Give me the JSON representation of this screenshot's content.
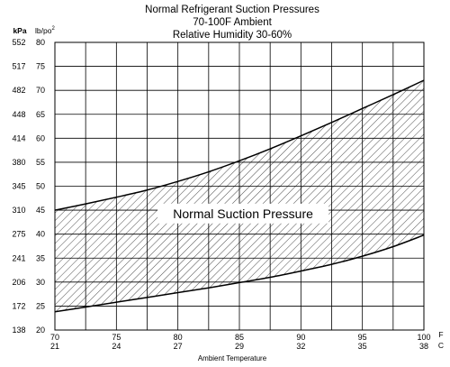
{
  "chart_data": {
    "type": "area",
    "title_lines": [
      "Normal  Refrigerant  Suction  Pressures",
      "70-100F Ambient",
      "Relative Humidity 30-60%"
    ],
    "y_unit_kpa": "kPa",
    "y_unit_lb": "lb/po",
    "y_unit_lb_sup": "2",
    "x_unit_f": "F",
    "x_unit_c": "C",
    "xlabel": "Ambient Temperature",
    "band_label": "Normal Suction Pressure",
    "xlim": [
      70,
      100
    ],
    "ylim": [
      20,
      80
    ],
    "x_ticks_f": [
      "70",
      "75",
      "80",
      "85",
      "90",
      "95",
      "100"
    ],
    "x_ticks_c": [
      "21",
      "24",
      "27",
      "29",
      "32",
      "35",
      "38"
    ],
    "y_ticks_lb": [
      "20",
      "25",
      "30",
      "35",
      "40",
      "45",
      "50",
      "55",
      "60",
      "65",
      "70",
      "75",
      "80"
    ],
    "y_ticks_kpa": [
      "138",
      "172",
      "206",
      "241",
      "275",
      "310",
      "345",
      "380",
      "414",
      "448",
      "482",
      "517",
      "552"
    ],
    "grid": true,
    "series": [
      {
        "x": [
          70,
          72.5,
          75,
          77.5,
          80,
          82.5,
          85,
          87.5,
          90,
          92.5,
          95,
          97.5,
          100
        ],
        "values": [
          45,
          46.3,
          47.7,
          49.2,
          51,
          53,
          55.3,
          57.8,
          60.5,
          63.3,
          66.2,
          69.1,
          72.1
        ]
      },
      {
        "x": [
          70,
          72.5,
          75,
          77.5,
          80,
          82.5,
          85,
          87.5,
          90,
          92.5,
          95,
          97.5,
          100
        ],
        "values": [
          23.8,
          24.8,
          25.8,
          26.8,
          27.8,
          28.8,
          29.9,
          31,
          32.3,
          33.7,
          35.4,
          37.4,
          39.8
        ]
      }
    ]
  }
}
